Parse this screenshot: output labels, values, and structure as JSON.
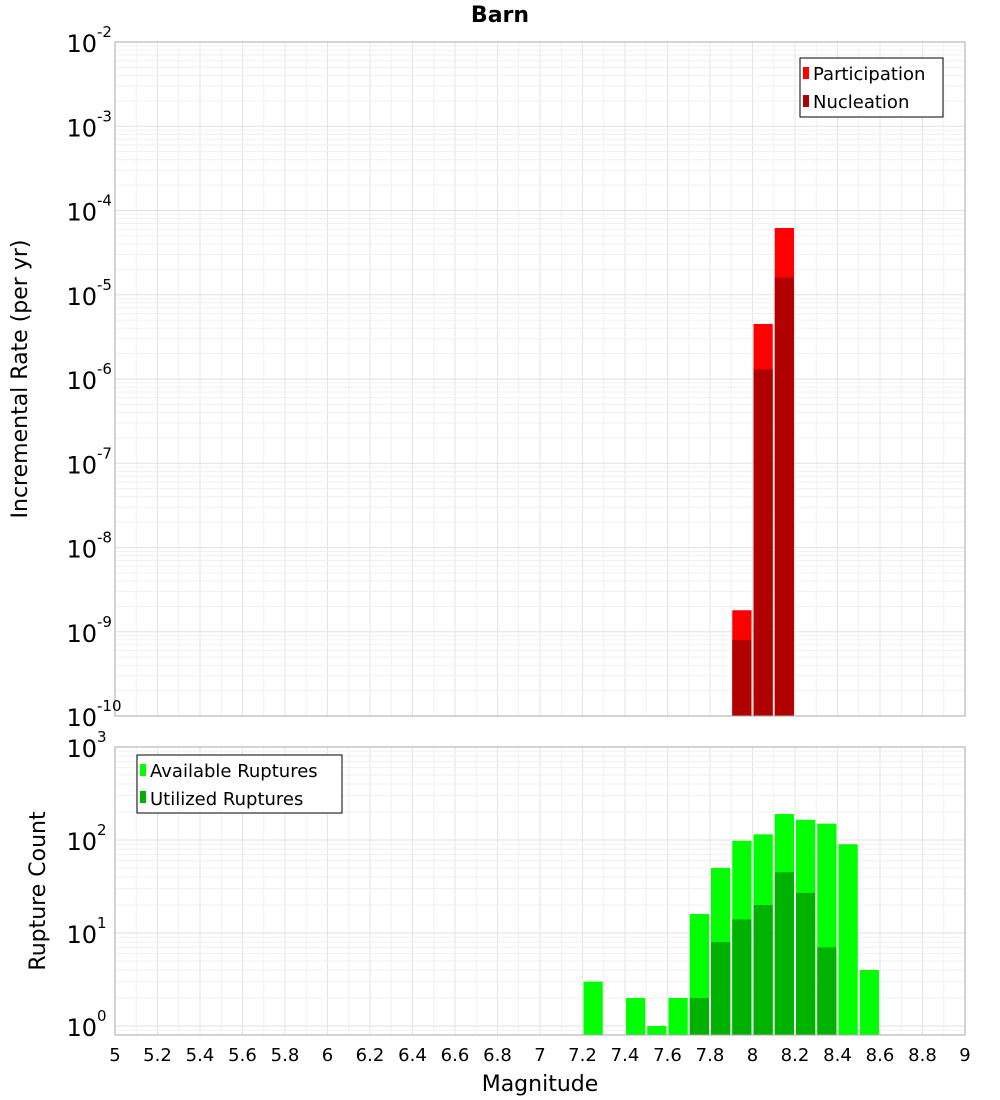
{
  "chart_data": [
    {
      "type": "bar",
      "title": "Barn",
      "ylabel": "Incremental Rate (per yr)",
      "xlabel": "",
      "x_range": [
        5,
        9
      ],
      "y_scale": "log",
      "ylim": [
        1e-10,
        0.01
      ],
      "y_ticks": [
        {
          "base": "10",
          "exp": "-10"
        },
        {
          "base": "10",
          "exp": "-9"
        },
        {
          "base": "10",
          "exp": "-8"
        },
        {
          "base": "10",
          "exp": "-7"
        },
        {
          "base": "10",
          "exp": "-6"
        },
        {
          "base": "10",
          "exp": "-5"
        },
        {
          "base": "10",
          "exp": "-4"
        },
        {
          "base": "10",
          "exp": "-3"
        },
        {
          "base": "10",
          "exp": "-2"
        }
      ],
      "bin_width": 0.1,
      "grid": true,
      "legend_position": "top-right",
      "series": [
        {
          "name": "Participation",
          "color": "#ff0000",
          "points": [
            {
              "x": 7.95,
              "y": 1.8e-09
            },
            {
              "x": 8.05,
              "y": 4.5e-06
            },
            {
              "x": 8.15,
              "y": 6.2e-05
            }
          ]
        },
        {
          "name": "Nucleation",
          "color": "#b00000",
          "points": [
            {
              "x": 7.95,
              "y": 8e-10
            },
            {
              "x": 8.05,
              "y": 1.3e-06
            },
            {
              "x": 8.15,
              "y": 1.6e-05
            }
          ]
        }
      ]
    },
    {
      "type": "bar",
      "ylabel": "Rupture Count",
      "xlabel": "Magnitude",
      "x_range": [
        5,
        9
      ],
      "x_ticks": [
        "5",
        "5.2",
        "5.4",
        "5.6",
        "5.8",
        "6",
        "6.2",
        "6.4",
        "6.6",
        "6.8",
        "7",
        "7.2",
        "7.4",
        "7.6",
        "7.8",
        "8",
        "8.2",
        "8.4",
        "8.6",
        "8.8",
        "9"
      ],
      "y_scale": "log",
      "ylim": [
        0.8,
        1000
      ],
      "y_ticks": [
        {
          "base": "10",
          "exp": "0"
        },
        {
          "base": "10",
          "exp": "1"
        },
        {
          "base": "10",
          "exp": "2"
        },
        {
          "base": "10",
          "exp": "3"
        }
      ],
      "bin_width": 0.1,
      "grid": true,
      "legend_position": "top-left",
      "series": [
        {
          "name": "Available Ruptures",
          "color": "#00ff00",
          "points": [
            {
              "x": 7.25,
              "y": 3
            },
            {
              "x": 7.45,
              "y": 2
            },
            {
              "x": 7.55,
              "y": 1
            },
            {
              "x": 7.65,
              "y": 2
            },
            {
              "x": 7.75,
              "y": 16
            },
            {
              "x": 7.85,
              "y": 50
            },
            {
              "x": 7.95,
              "y": 98
            },
            {
              "x": 8.05,
              "y": 115
            },
            {
              "x": 8.15,
              "y": 190
            },
            {
              "x": 8.25,
              "y": 165
            },
            {
              "x": 8.35,
              "y": 150
            },
            {
              "x": 8.45,
              "y": 90
            },
            {
              "x": 8.55,
              "y": 4
            }
          ]
        },
        {
          "name": "Utilized Ruptures",
          "color": "#00b200",
          "points": [
            {
              "x": 7.75,
              "y": 2
            },
            {
              "x": 7.85,
              "y": 8
            },
            {
              "x": 7.95,
              "y": 14
            },
            {
              "x": 8.05,
              "y": 20
            },
            {
              "x": 8.15,
              "y": 45
            },
            {
              "x": 8.25,
              "y": 27
            },
            {
              "x": 8.35,
              "y": 7
            }
          ]
        }
      ]
    }
  ]
}
